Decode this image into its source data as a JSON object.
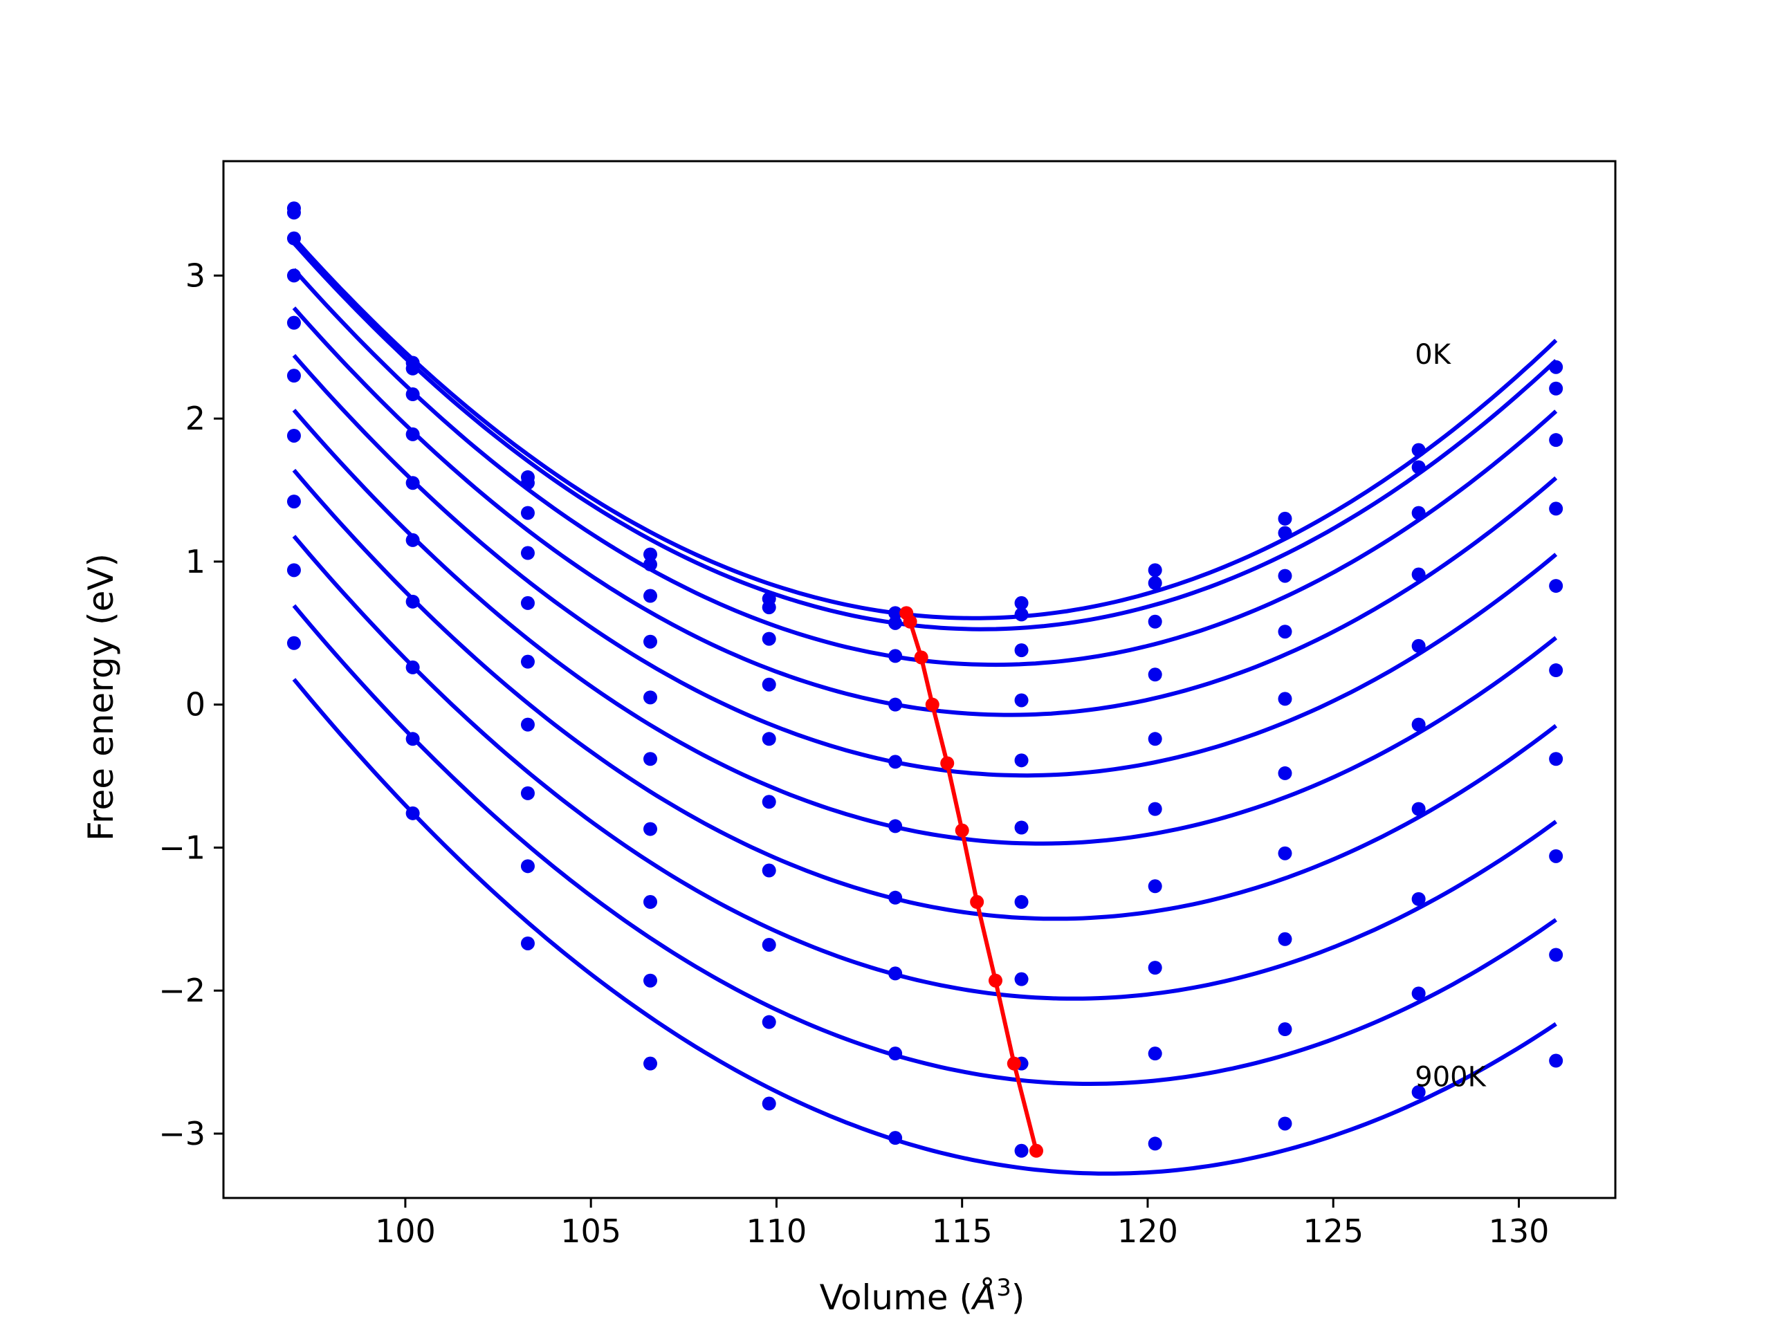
{
  "chart_data": {
    "type": "line",
    "title": "",
    "xlabel_main": "Volume (",
    "xlabel_unit": "Å",
    "xlabel_exp": "3",
    "xlabel_close": ")",
    "ylabel": "Free energy (eV)",
    "xlim": [
      95.1,
      132.6
    ],
    "ylim": [
      -3.45,
      3.8
    ],
    "x_ticks": [
      100,
      105,
      110,
      115,
      120,
      125,
      130
    ],
    "y_ticks": [
      -3,
      -2,
      -1,
      0,
      1,
      2,
      3
    ],
    "x_tick_labels": [
      "100",
      "105",
      "110",
      "115",
      "120",
      "125",
      "130"
    ],
    "y_tick_labels": [
      "−3",
      "−2",
      "−1",
      "0",
      "1",
      "2",
      "3"
    ],
    "annotations": [
      {
        "text": "0K",
        "x": 127.2,
        "y": 2.45
      },
      {
        "text": "900K",
        "x": 127.2,
        "y": -2.6
      }
    ],
    "volumes": [
      97.0,
      100.2,
      103.3,
      106.6,
      109.8,
      113.2,
      116.6,
      120.2,
      123.7,
      127.3,
      131.0
    ],
    "series": [
      {
        "y": [
          3.47,
          2.39,
          1.59,
          1.05,
          0.74,
          0.64,
          0.71,
          0.94,
          1.3,
          1.78,
          2.36
        ]
      },
      {
        "y": [
          3.44,
          2.35,
          1.55,
          0.98,
          0.68,
          0.57,
          0.63,
          0.85,
          1.2,
          1.66,
          2.21
        ]
      },
      {
        "y": [
          3.26,
          2.17,
          1.34,
          0.76,
          0.46,
          0.34,
          0.38,
          0.58,
          0.9,
          1.34,
          1.85
        ]
      },
      {
        "y": [
          3.0,
          1.89,
          1.06,
          0.44,
          0.14,
          0.0,
          0.03,
          0.21,
          0.51,
          0.91,
          1.37
        ]
      },
      {
        "y": [
          2.67,
          1.55,
          0.71,
          0.05,
          -0.24,
          -0.4,
          -0.39,
          -0.24,
          0.04,
          0.41,
          0.83
        ]
      },
      {
        "y": [
          2.3,
          1.15,
          0.3,
          -0.38,
          -0.68,
          -0.85,
          -0.86,
          -0.73,
          -0.48,
          -0.14,
          0.24
        ]
      },
      {
        "y": [
          1.88,
          0.72,
          -0.14,
          -0.87,
          -1.16,
          -1.35,
          -1.38,
          -1.27,
          -1.04,
          -0.73,
          -0.38
        ]
      },
      {
        "y": [
          1.42,
          0.26,
          -0.62,
          -1.38,
          -1.68,
          -1.88,
          -1.92,
          -1.84,
          -1.64,
          -1.36,
          -1.06
        ]
      },
      {
        "y": [
          0.94,
          -0.24,
          -1.13,
          -1.93,
          -2.22,
          -2.44,
          -2.51,
          -2.44,
          -2.27,
          -2.02,
          -1.75
        ]
      },
      {
        "y": [
          0.43,
          -0.76,
          -1.67,
          -2.51,
          -2.79,
          -3.03,
          -3.12,
          -3.07,
          -2.93,
          -2.71,
          -2.49
        ]
      }
    ],
    "minima": {
      "x": [
        113.5,
        113.6,
        113.9,
        114.2,
        114.6,
        115.0,
        115.4,
        115.9,
        116.4,
        117.0
      ],
      "y": [
        0.64,
        0.58,
        0.33,
        0.0,
        -0.41,
        -0.88,
        -1.38,
        -1.93,
        -2.51,
        -3.12
      ]
    },
    "colors": {
      "curves": "#0000ee",
      "minima_line": "#ff0000",
      "axes": "#000000"
    }
  }
}
